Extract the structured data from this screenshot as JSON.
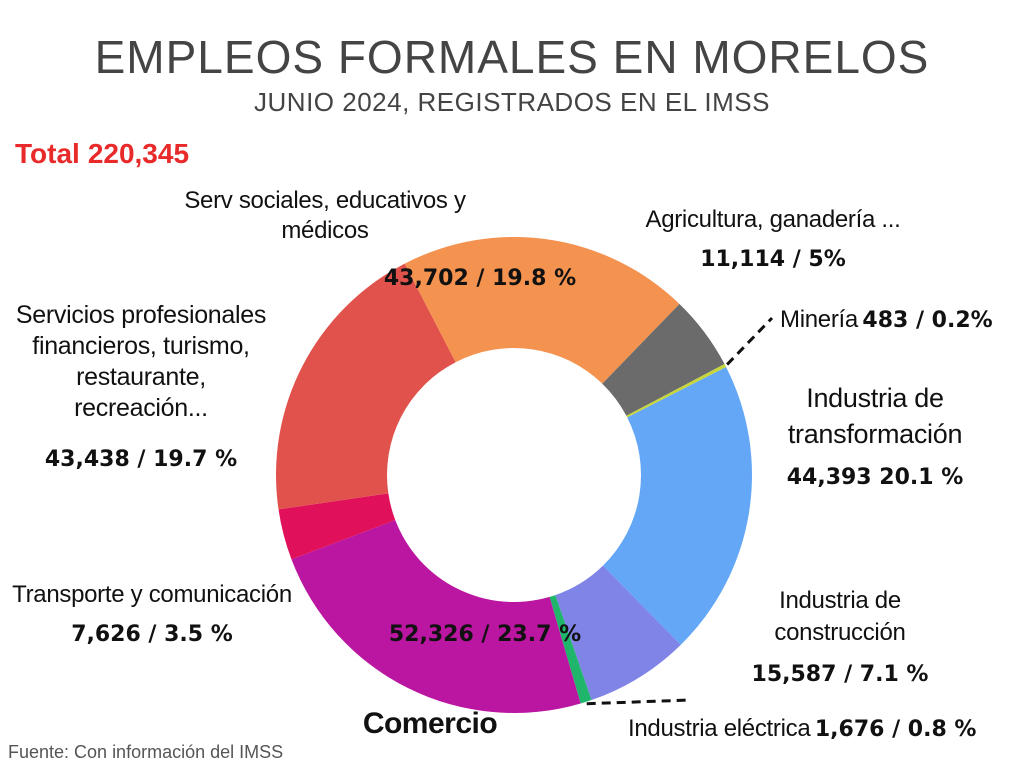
{
  "header": {
    "title": "EMPLEOS FORMALES EN MORELOS",
    "subtitle": "JUNIO 2024, REGISTRADOS EN EL IMSS",
    "total_label": "Total",
    "total_value": "220,345"
  },
  "footer": {
    "source": "Fuente: Con información del IMSS"
  },
  "chart_data": {
    "type": "pie",
    "title": "EMPLEOS FORMALES EN MORELOS",
    "subtitle": "JUNIO 2024, REGISTRADOS EN EL IMSS",
    "total": 220345,
    "donut": true,
    "slices": [
      {
        "key": "transformacion",
        "name": "Industria de transformación",
        "value": 44393,
        "percent": 20.1,
        "value_text": "44,393   20.1 %",
        "color": "#64a7f7"
      },
      {
        "key": "construccion",
        "name": "Industria de construcción",
        "value": 15587,
        "percent": 7.1,
        "value_text": "15,587 / 7.1 %",
        "color": "#7f84e6"
      },
      {
        "key": "electrica",
        "name": "Industria eléctrica",
        "value": 1676,
        "percent": 0.8,
        "value_text": "1,676 / 0.8 %",
        "color": "#1fb56a"
      },
      {
        "key": "comercio",
        "name": "Comercio",
        "value": 52326,
        "percent": 23.7,
        "value_text": "52,326 / 23.7 %",
        "color": "#bb16a1"
      },
      {
        "key": "transporte",
        "name": "Transporte y comunicación",
        "value": 7626,
        "percent": 3.5,
        "value_text": "7,626 / 3.5 %",
        "color": "#e0105b"
      },
      {
        "key": "profesionales",
        "name": "Servicios profesionales financieros, turismo, restaurante, recreación...",
        "value": 43438,
        "percent": 19.7,
        "value_text": "43,438 / 19.7 %",
        "color": "#e0524b"
      },
      {
        "key": "sociales",
        "name": "Serv sociales, educativos y médicos",
        "value": 43702,
        "percent": 19.8,
        "value_text": "43,702 / 19.8 %",
        "color": "#f4924f"
      },
      {
        "key": "agricultura",
        "name": "Agricultura, ganadería ...",
        "value": 11114,
        "percent": 5,
        "value_text": "11,114  /  5%",
        "color": "#6b6b6b"
      },
      {
        "key": "mineria",
        "name": "Minería",
        "value": 483,
        "percent": 0.2,
        "value_text": "483 / 0.2%",
        "color": "#c6d63a"
      }
    ]
  }
}
